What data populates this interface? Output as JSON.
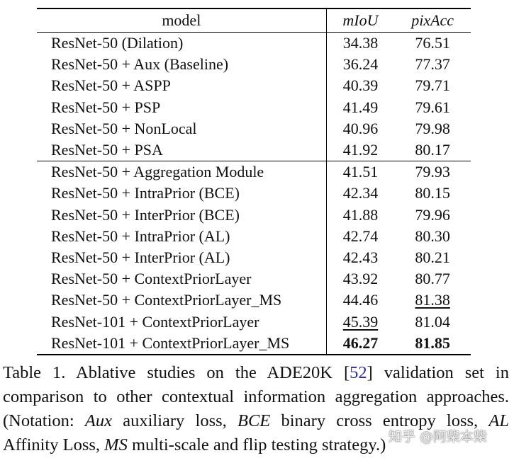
{
  "table": {
    "header": [
      "model",
      "mIoU",
      "pixAcc"
    ],
    "groups": [
      {
        "rows": [
          {
            "cells": [
              "ResNet-50 (Dilation)",
              "34.38",
              "76.51"
            ]
          },
          {
            "cells": [
              "ResNet-50 + Aux (Baseline)",
              "36.24",
              "77.37"
            ]
          },
          {
            "cells": [
              "ResNet-50 + ASPP",
              "40.39",
              "79.71"
            ]
          },
          {
            "cells": [
              "ResNet-50 + PSP",
              "41.49",
              "79.61"
            ]
          },
          {
            "cells": [
              "ResNet-50 + NonLocal",
              "40.96",
              "79.98"
            ]
          },
          {
            "cells": [
              "ResNet-50 + PSA",
              "41.92",
              "80.17"
            ]
          }
        ]
      },
      {
        "rows": [
          {
            "cells": [
              "ResNet-50 + Aggregation Module",
              "41.51",
              "79.93"
            ]
          },
          {
            "cells": [
              "ResNet-50 + IntraPrior (BCE)",
              "42.34",
              "80.15"
            ]
          },
          {
            "cells": [
              "ResNet-50 + InterPrior (BCE)",
              "41.88",
              "79.96"
            ]
          },
          {
            "cells": [
              "ResNet-50 + IntraPrior (AL)",
              "42.74",
              "80.30"
            ]
          },
          {
            "cells": [
              "ResNet-50 + InterPrior (AL)",
              "42.43",
              "80.21"
            ]
          },
          {
            "cells": [
              "ResNet-50 + ContextPriorLayer",
              "43.92",
              "80.77"
            ]
          },
          {
            "cells": [
              "ResNet-50 + ContextPriorLayer_MS",
              "44.46",
              "81.38"
            ],
            "underline": [
              2
            ]
          },
          {
            "cells": [
              "ResNet-101 + ContextPriorLayer",
              "45.39",
              "81.04"
            ],
            "underline": [
              1
            ]
          },
          {
            "cells": [
              "ResNet-101 + ContextPriorLayer_MS",
              "46.27",
              "81.85"
            ],
            "bold": [
              1,
              2
            ]
          }
        ]
      }
    ]
  },
  "caption": [
    {
      "text": "Table 1. Ablative studies on the ADE20K ["
    },
    {
      "text": "52",
      "link": true
    },
    {
      "text": "] validation set in comparison to other contextual information aggregation approaches. (Notation: "
    },
    {
      "text": "Aux",
      "italic": true
    },
    {
      "text": " auxiliary loss, "
    },
    {
      "text": "BCE",
      "italic": true
    },
    {
      "text": " binary cross entropy loss, "
    },
    {
      "text": "AL",
      "italic": true
    },
    {
      "text": " Affinity Loss, "
    },
    {
      "text": "MS",
      "italic": true
    },
    {
      "text": " multi-scale and flip testing strategy.)"
    }
  ],
  "watermark": "知乎 @阿柴本柴"
}
